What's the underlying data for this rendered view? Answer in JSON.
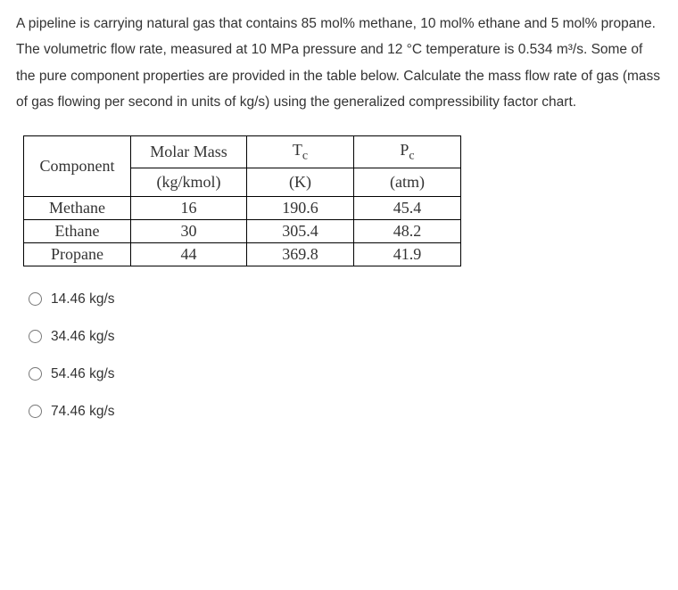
{
  "problem": {
    "text_html": "A pipeline is carrying natural gas that contains 85 mol% methane, 10 mol% ethane and 5 mol% propane. The volumetric flow rate, measured at 10 MPa pressure and 12 °C temperature is 0.534 m³/s. Some of the pure component properties are provided in the table below. Calculate the mass flow rate of gas (mass of gas flowing per second in units of kg/s) using the generalized compressibility factor chart."
  },
  "table": {
    "columns": [
      {
        "header": "Component",
        "unit": ""
      },
      {
        "header": "Molar Mass",
        "unit": "(kg/kmol)"
      },
      {
        "header_html": "T<span class=\"sub\">c</span>",
        "unit": "(K)"
      },
      {
        "header_html": "P<span class=\"sub\">c</span>",
        "unit": "(atm)"
      }
    ],
    "rows": [
      [
        "Methane",
        "16",
        "190.6",
        "45.4"
      ],
      [
        "Ethane",
        "30",
        "305.4",
        "48.2"
      ],
      [
        "Propane",
        "44",
        "369.8",
        "41.9"
      ]
    ],
    "border_color": "#000000",
    "font_family": "Times New Roman",
    "header_fontsize": 18,
    "cell_fontsize": 18
  },
  "options": [
    {
      "label": "14.46 kg/s",
      "selected": false
    },
    {
      "label": "34.46 kg/s",
      "selected": false
    },
    {
      "label": "54.46 kg/s",
      "selected": false
    },
    {
      "label": "74.46 kg/s",
      "selected": false
    }
  ],
  "colors": {
    "background": "#ffffff",
    "text": "#333333",
    "radio_border": "#777777"
  }
}
